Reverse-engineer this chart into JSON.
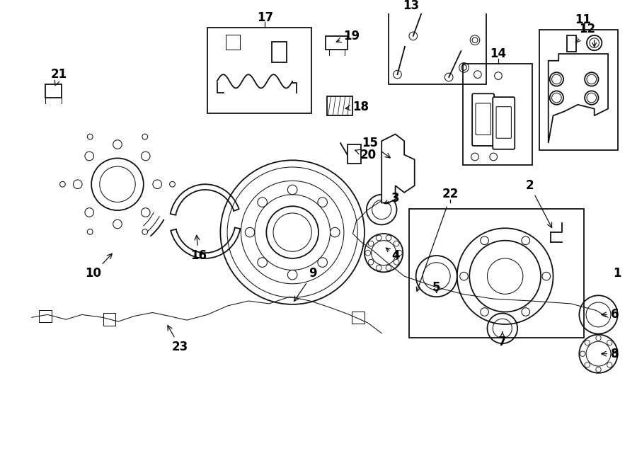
{
  "bg_color": "#ffffff",
  "line_color": "#111111",
  "lw_main": 1.3,
  "lw_thin": 0.75,
  "font_size": 12,
  "figsize": [
    9.0,
    6.61
  ],
  "dpi": 100
}
